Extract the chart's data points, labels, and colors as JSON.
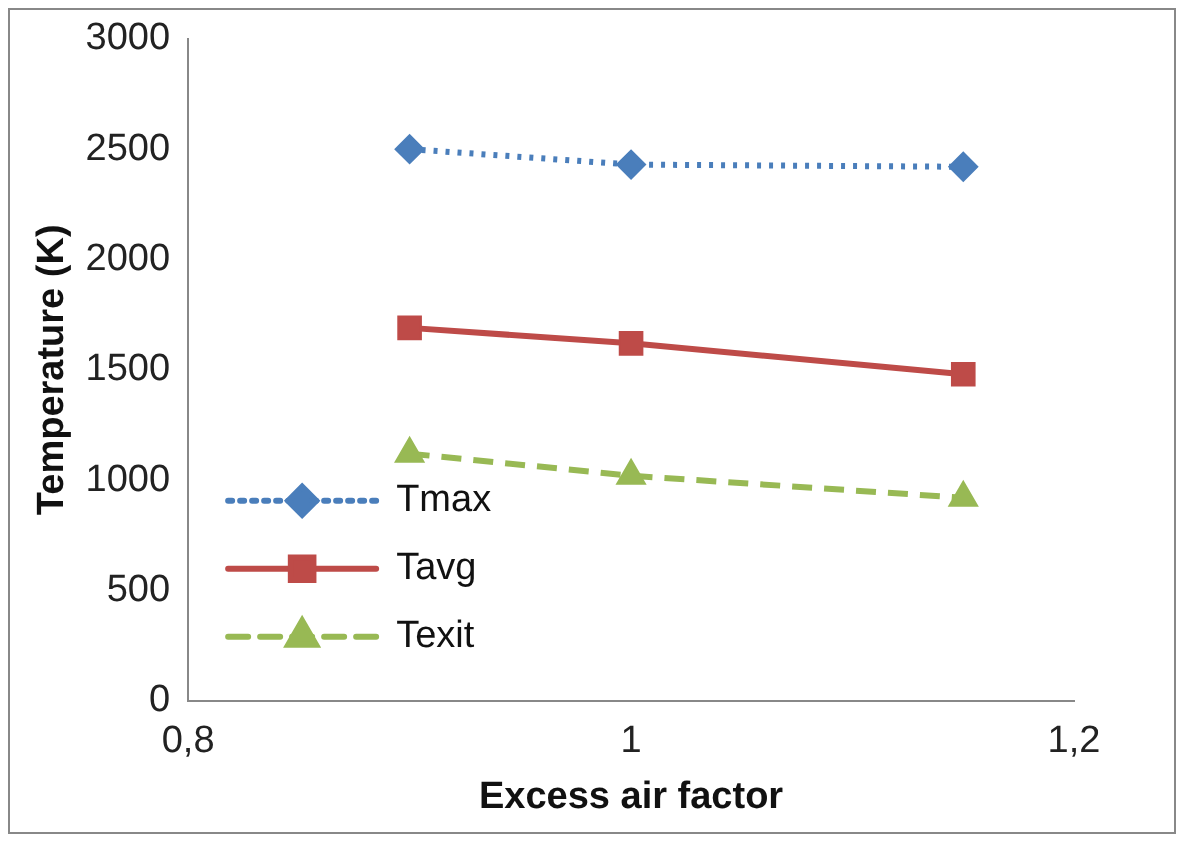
{
  "chart_data": {
    "type": "line",
    "xlabel": "Excess air factor",
    "ylabel": "Temperature (K)",
    "x": [
      0.9,
      1,
      1.15
    ],
    "xlim": [
      0.8,
      1.2
    ],
    "xticks": [
      {
        "value": 0.8,
        "label": "0,8"
      },
      1,
      {
        "value": 1.2,
        "label": "1,2"
      }
    ],
    "ylim": [
      0,
      3000
    ],
    "yticks": [
      0,
      500,
      1000,
      1500,
      2000,
      2500,
      3000
    ],
    "grid": false,
    "legend": "bottom left",
    "series": [
      {
        "name": "Tmax",
        "color": "#4a7ebb",
        "values": [
          2500,
          2430,
          2420
        ],
        "marker": "diamond",
        "line_style": "dotted"
      },
      {
        "name": "Tavg",
        "color": "#be4b48",
        "values": [
          1690,
          1620,
          1480
        ],
        "marker": "square",
        "line_style": "solid"
      },
      {
        "name": "Texit",
        "color": "#98b954",
        "values": [
          1120,
          1020,
          920
        ],
        "marker": "triangle",
        "line_style": "dashed"
      }
    ]
  }
}
